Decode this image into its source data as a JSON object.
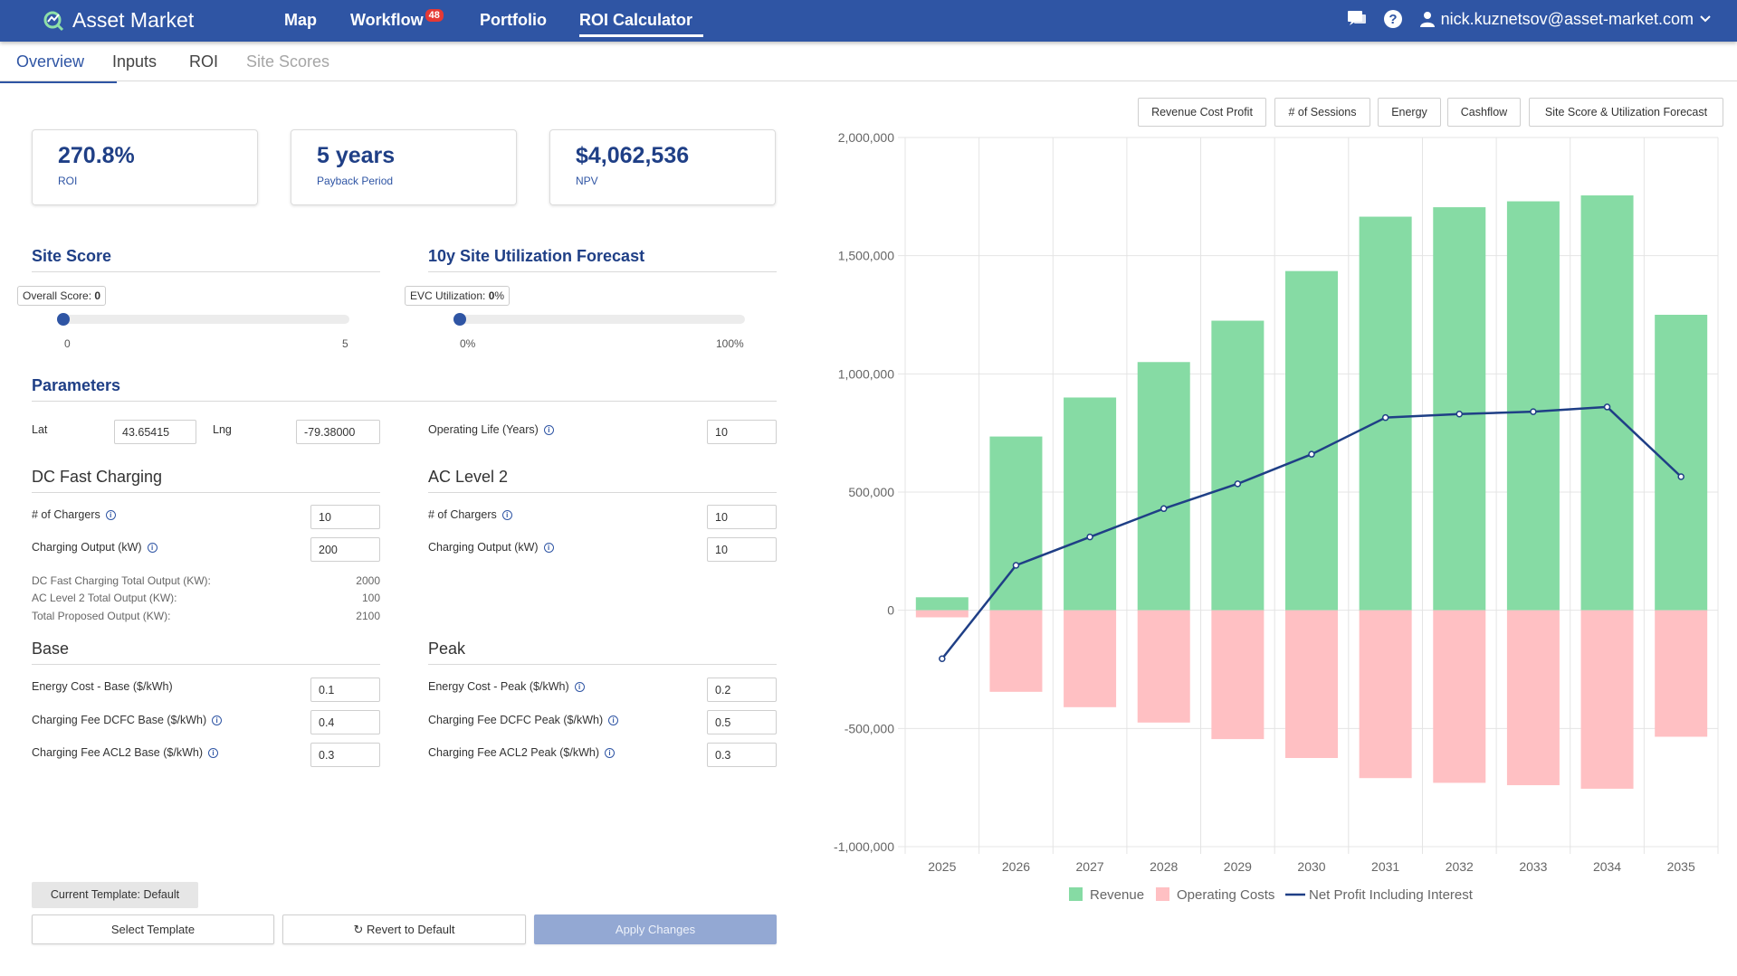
{
  "nav": {
    "brand": "Asset Market",
    "items": [
      "Map",
      "Workflow",
      "Portfolio",
      "ROI Calculator"
    ],
    "workflow_badge": "48",
    "user_email": "nick.kuznetsov@asset-market.com"
  },
  "subtabs": [
    "Overview",
    "Inputs",
    "ROI",
    "Site Scores"
  ],
  "kpis": [
    {
      "value": "270.8%",
      "label": "ROI"
    },
    {
      "value": "5 years",
      "label": "Payback Period"
    },
    {
      "value": "$4,062,536",
      "label": "NPV"
    }
  ],
  "site_score": {
    "title": "Site Score",
    "tip_label": "Overall Score:",
    "tip_value": "0",
    "min": "0",
    "max": "5",
    "value": 0
  },
  "utilization": {
    "title": "10y Site Utilization Forecast",
    "tip_label": "EVC Utilization:",
    "tip_value": "0",
    "tip_unit": "%",
    "min": "0%",
    "max": "100%",
    "value": 0
  },
  "parameters": {
    "title": "Parameters",
    "lat_label": "Lat",
    "lat": "43.65415",
    "lng_label": "Lng",
    "lng": "-79.38000",
    "op_life_label": "Operating Life (Years)",
    "op_life": "10"
  },
  "dcfc": {
    "title": "DC Fast Charging",
    "chargers_label": "# of Chargers",
    "chargers": "10",
    "output_label": "Charging Output (kW)",
    "output": "200"
  },
  "acl2": {
    "title": "AC Level 2",
    "chargers_label": "# of Chargers",
    "chargers": "10",
    "output_label": "Charging Output (kW)",
    "output": "10"
  },
  "summary": [
    {
      "label": "DC Fast Charging Total Output (KW):",
      "value": "2000"
    },
    {
      "label": "AC Level 2 Total Output (KW):",
      "value": "100"
    },
    {
      "label": "Total Proposed Output (KW):",
      "value": "2100"
    }
  ],
  "base": {
    "title": "Base",
    "rows": [
      {
        "label": "Energy Cost - Base ($/kWh)",
        "value": "0.1",
        "info": false
      },
      {
        "label": "Charging Fee DCFC Base ($/kWh)",
        "value": "0.4",
        "info": true
      },
      {
        "label": "Charging Fee ACL2 Base ($/kWh)",
        "value": "0.3",
        "info": true
      }
    ]
  },
  "peak": {
    "title": "Peak",
    "rows": [
      {
        "label": "Energy Cost - Peak ($/kWh)",
        "value": "0.2",
        "info": true
      },
      {
        "label": "Charging Fee DCFC Peak ($/kWh)",
        "value": "0.5",
        "info": true
      },
      {
        "label": "Charging Fee ACL2 Peak ($/kWh)",
        "value": "0.3",
        "info": true
      }
    ]
  },
  "footer": {
    "template_label": "Current Template: Default",
    "select_template": "Select Template",
    "revert": "Revert to Default",
    "apply": "Apply Changes"
  },
  "chart_tabs": [
    "Revenue Cost Profit",
    "# of Sessions",
    "Energy",
    "Cashflow",
    "Site Score & Utilization Forecast"
  ],
  "colors": {
    "brand": "#2f55a4",
    "revenue": "#86dba4",
    "costs": "#ffc0c3",
    "profit": "#1f3f86"
  },
  "chart_data": {
    "type": "bar",
    "title": "",
    "xlabel": "",
    "ylabel": "",
    "categories": [
      "2025",
      "2026",
      "2027",
      "2028",
      "2029",
      "2030",
      "2031",
      "2032",
      "2033",
      "2034",
      "2035"
    ],
    "series": [
      {
        "name": "Revenue",
        "type": "bar",
        "values": [
          55000,
          735000,
          900000,
          1050000,
          1225000,
          1435000,
          1665000,
          1705000,
          1730000,
          1755000,
          1250000
        ]
      },
      {
        "name": "Operating Costs",
        "type": "bar",
        "values": [
          -30000,
          -345000,
          -410000,
          -475000,
          -545000,
          -625000,
          -710000,
          -730000,
          -740000,
          -755000,
          -535000
        ]
      },
      {
        "name": "Net Profit Including Interest",
        "type": "line",
        "values": [
          -205000,
          190000,
          310000,
          430000,
          535000,
          660000,
          815000,
          830000,
          840000,
          860000,
          565000
        ]
      }
    ],
    "ylim": [
      -1000000,
      2000000
    ],
    "yticks": [
      2000000,
      1500000,
      1000000,
      500000,
      0,
      -500000,
      -1000000
    ],
    "ytick_labels": [
      "2,000,000",
      "1,500,000",
      "1,000,000",
      "500,000",
      "0",
      "-500,000",
      "-1,000,000"
    ],
    "legend": "bottom-center",
    "grid": true
  }
}
